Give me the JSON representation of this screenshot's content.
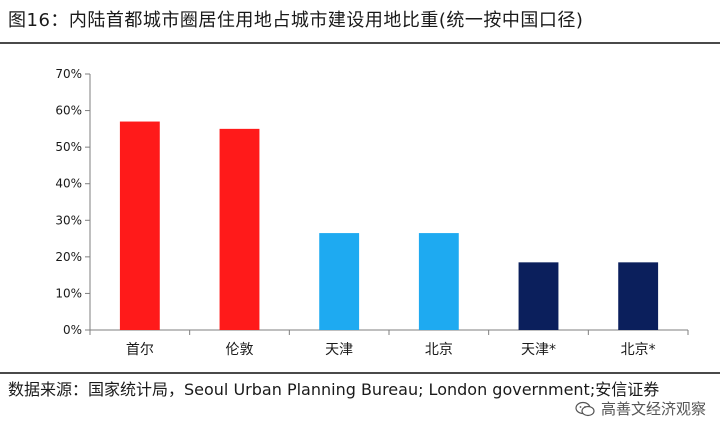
{
  "figure": {
    "title": "图16：内陆首都城市圈居住用地占城市建设用地比重(统一按中国口径)"
  },
  "source": {
    "text": "数据来源：国家统计局，Seoul Urban Planning Bureau; London government;安信证券"
  },
  "watermark": {
    "text": "高善文经济观察",
    "icon": "wechat-icon"
  },
  "chart_data": {
    "type": "bar",
    "categories": [
      "首尔",
      "伦敦",
      "天津",
      "北京",
      "天津*",
      "北京*"
    ],
    "values": [
      57,
      55,
      26.5,
      26.5,
      18.5,
      18.5
    ],
    "colors": [
      "#ff1a1a",
      "#ff1a1a",
      "#1eaaf1",
      "#1eaaf1",
      "#0b1f5c",
      "#0b1f5c"
    ],
    "ylim": [
      0,
      70
    ],
    "yticks": [
      0,
      10,
      20,
      30,
      40,
      50,
      60,
      70
    ],
    "ytick_format": "percent",
    "grid": false,
    "xlabel": "",
    "ylabel": ""
  }
}
